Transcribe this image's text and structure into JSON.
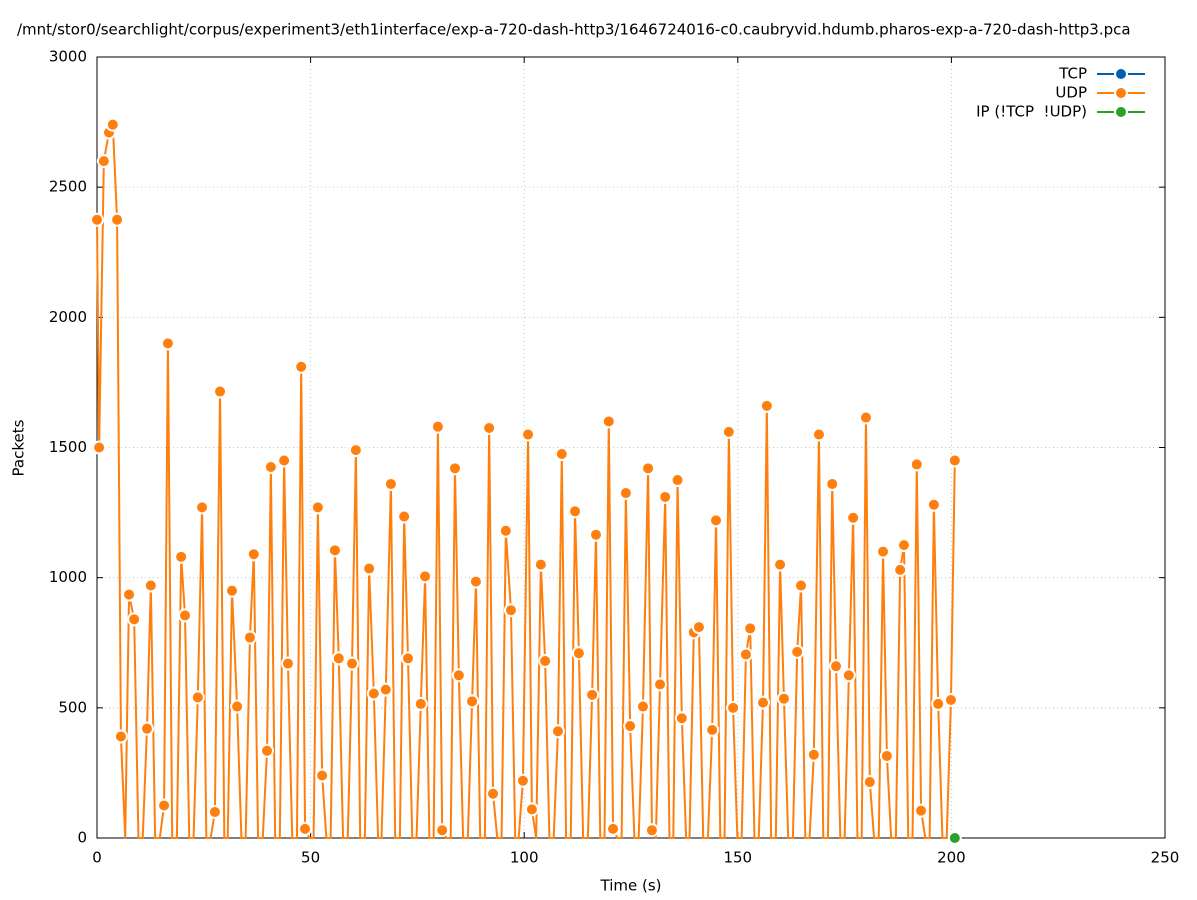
{
  "chart_data": {
    "type": "line",
    "title": "/mnt/stor0/searchlight/corpus/experiment3/eth1interface/exp-a-720-dash-http3/1646724016-c0.caubryvid.hdumb.pharos-exp-a-720-dash-http3.pca",
    "x_label": "Time (s)",
    "y_label": "Packets",
    "xlim": [
      0,
      250
    ],
    "xticks": [
      0,
      50,
      100,
      150,
      200,
      250
    ],
    "ylim": [
      0,
      3000
    ],
    "yticks": [
      0,
      500,
      1000,
      1500,
      2000,
      2500,
      3000
    ],
    "grid": true,
    "legend": "top-right",
    "series": [
      {
        "name": "TCP",
        "color": "#0060ad",
        "x": [],
        "values": []
      },
      {
        "name": "UDP",
        "color": "#ff7f0e",
        "x": [
          0,
          0.5,
          1.6,
          2.8,
          3.7,
          4.7,
          5.6,
          6.6,
          7.5,
          8.7,
          9.7,
          10.7,
          11.7,
          12.6,
          13.6,
          14.7,
          15.7,
          16.6,
          17.6,
          18.7,
          19.7,
          20.6,
          21.6,
          22.6,
          23.6,
          24.6,
          25.6,
          26.6,
          27.6,
          28.8,
          29.8,
          30.6,
          31.6,
          32.8,
          33.8,
          34.8,
          35.8,
          36.7,
          37.7,
          38.8,
          39.8,
          40.7,
          41.7,
          42.8,
          43.8,
          44.7,
          45.7,
          46.8,
          47.8,
          48.7,
          49.7,
          50.7,
          51.7,
          52.7,
          53.7,
          54.7,
          55.7,
          56.6,
          57.6,
          58.7,
          59.7,
          60.6,
          61.6,
          62.7,
          63.7,
          64.8,
          65.8,
          66.6,
          67.6,
          68.8,
          69.8,
          70.9,
          71.9,
          72.8,
          73.8,
          74.8,
          75.8,
          76.8,
          77.8,
          78.8,
          79.8,
          80.8,
          81.8,
          82.8,
          83.8,
          84.7,
          85.7,
          86.8,
          87.8,
          88.7,
          89.7,
          90.8,
          91.8,
          92.7,
          93.7,
          94.7,
          95.7,
          96.9,
          97.9,
          98.7,
          99.7,
          100.9,
          101.8,
          102.8,
          103.9,
          104.9,
          105.9,
          106.9,
          107.9,
          108.8,
          109.8,
          110.9,
          111.9,
          112.8,
          113.8,
          114.9,
          115.9,
          116.8,
          117.8,
          118.8,
          119.8,
          120.8,
          121.8,
          122.8,
          123.8,
          124.8,
          125.8,
          126.8,
          127.8,
          129.0,
          129.9,
          130.8,
          131.8,
          133.0,
          134.0,
          134.9,
          135.9,
          136.9,
          137.9,
          138.7,
          139.7,
          140.9,
          141.9,
          143.0,
          144.0,
          144.9,
          145.9,
          146.9,
          147.9,
          148.9,
          149.9,
          150.9,
          151.9,
          152.9,
          153.9,
          154.9,
          155.9,
          156.8,
          157.8,
          158.9,
          159.9,
          160.8,
          161.8,
          162.9,
          163.9,
          164.8,
          165.8,
          166.8,
          167.8,
          169.0,
          170.0,
          171.1,
          172.1,
          173.0,
          174.0,
          175.0,
          176.0,
          177.0,
          178.0,
          179.0,
          180.0,
          180.9,
          181.9,
          183.0,
          184.0,
          184.9,
          185.9,
          187.0,
          188.0,
          188.9,
          189.9,
          190.9,
          191.9,
          192.9,
          193.9,
          194.9,
          195.9,
          196.9,
          197.9,
          198.9,
          199.9,
          200.8
        ],
        "values": [
          2375,
          1500,
          2600,
          2710,
          2740,
          2375,
          390,
          0,
          935,
          840,
          0,
          0,
          420,
          970,
          0,
          0,
          125,
          1900,
          0,
          0,
          1080,
          855,
          0,
          0,
          540,
          1270,
          0,
          0,
          100,
          1715,
          0,
          0,
          950,
          505,
          0,
          0,
          770,
          1090,
          0,
          0,
          335,
          1425,
          0,
          0,
          1450,
          670,
          0,
          0,
          1810,
          35,
          0,
          0,
          1270,
          240,
          0,
          0,
          1105,
          690,
          0,
          0,
          670,
          1490,
          0,
          0,
          1035,
          555,
          0,
          0,
          570,
          1360,
          0,
          0,
          1235,
          690,
          0,
          0,
          515,
          1005,
          0,
          0,
          1580,
          30,
          0,
          0,
          1420,
          625,
          0,
          0,
          525,
          985,
          0,
          0,
          1575,
          170,
          0,
          0,
          1180,
          875,
          0,
          0,
          220,
          1550,
          110,
          0,
          1050,
          680,
          0,
          0,
          410,
          1475,
          0,
          0,
          1255,
          710,
          0,
          0,
          550,
          1165,
          0,
          0,
          1600,
          35,
          0,
          0,
          1325,
          430,
          0,
          0,
          505,
          1420,
          30,
          0,
          590,
          1310,
          0,
          0,
          1375,
          460,
          0,
          0,
          790,
          810,
          0,
          0,
          415,
          1220,
          0,
          0,
          1560,
          500,
          0,
          0,
          705,
          805,
          0,
          0,
          520,
          1660,
          0,
          0,
          1050,
          535,
          0,
          0,
          715,
          970,
          0,
          0,
          320,
          1550,
          0,
          0,
          1360,
          660,
          0,
          0,
          625,
          1230,
          0,
          0,
          1615,
          215,
          0,
          0,
          1100,
          315,
          0,
          0,
          1030,
          1125,
          0,
          0,
          1435,
          105,
          0,
          0,
          1280,
          515,
          0,
          0,
          530,
          1450
        ]
      },
      {
        "name": "IP (!TCP  !UDP)",
        "color": "#2ca02c",
        "x": [
          200.8
        ],
        "values": [
          0
        ]
      }
    ]
  }
}
